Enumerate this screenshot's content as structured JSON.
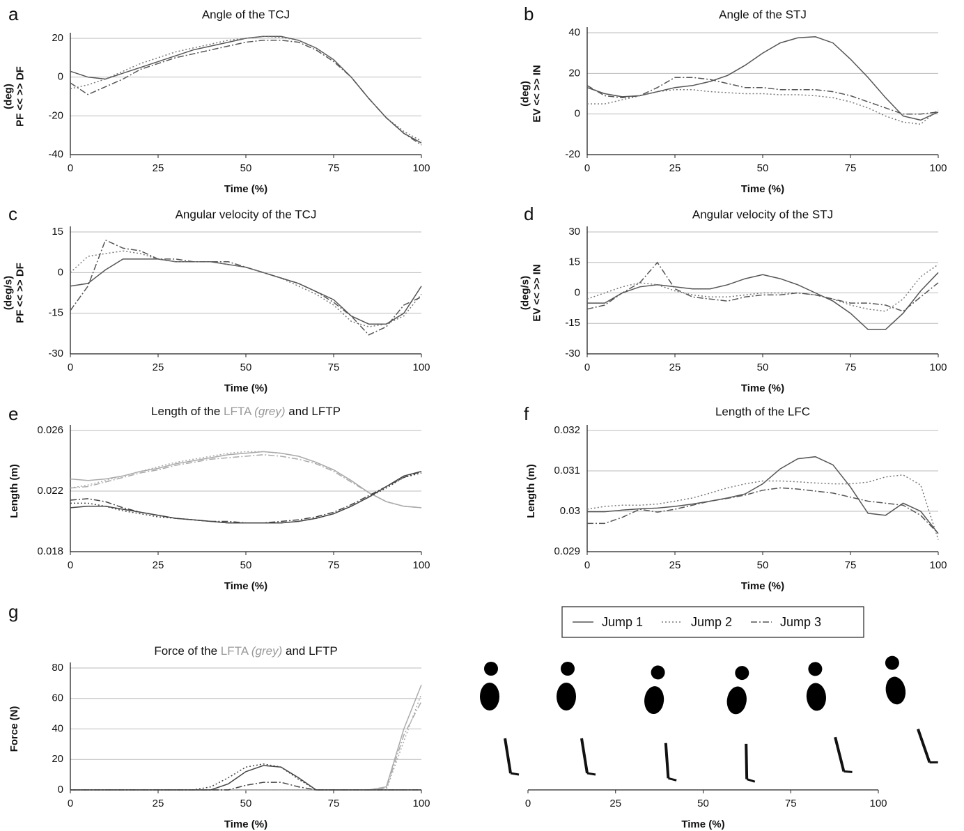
{
  "chart_data": [
    {
      "type": "line",
      "label": "a",
      "title": "Angle of the TCJ",
      "ylabel": [
        "(deg)",
        "PF << >> DF"
      ],
      "xlabel": "Time (%)",
      "x": [
        0,
        5,
        10,
        15,
        20,
        25,
        30,
        35,
        40,
        45,
        50,
        55,
        60,
        65,
        70,
        75,
        80,
        85,
        90,
        95,
        100
      ],
      "xlim": [
        0,
        100
      ],
      "xticks": [
        0,
        25,
        50,
        75,
        100
      ],
      "ylim": [
        -40,
        20
      ],
      "yticks": [
        -40,
        -20,
        0,
        20
      ],
      "grid": true,
      "series": [
        {
          "name": "Jump 1",
          "color": "#555555",
          "dash": "solid",
          "values": [
            3,
            0,
            -1,
            2,
            5,
            8,
            11,
            14,
            16,
            18,
            20,
            21,
            21,
            19,
            15,
            9,
            0,
            -11,
            -21,
            -29,
            -34
          ]
        },
        {
          "name": "Jump 2",
          "color": "#777777",
          "dash": "dotted",
          "values": [
            -6,
            -4,
            -1,
            3,
            7,
            10,
            13,
            15,
            17,
            19,
            20,
            21,
            20.5,
            19,
            15,
            9,
            0,
            -11,
            -21,
            -28,
            -33
          ]
        },
        {
          "name": "Jump 3",
          "color": "#555555",
          "dash": "dashdot",
          "values": [
            -3,
            -9,
            -5,
            -1,
            4,
            7,
            10,
            12,
            14,
            16,
            18,
            19,
            19,
            18,
            14,
            8,
            0,
            -11,
            -21,
            -29,
            -35
          ]
        }
      ]
    },
    {
      "type": "line",
      "label": "b",
      "title": "Angle of the STJ",
      "ylabel": [
        "(deg)",
        "EV << >> IN"
      ],
      "xlabel": "Time (%)",
      "x": [
        0,
        5,
        10,
        15,
        20,
        25,
        30,
        35,
        40,
        45,
        50,
        55,
        60,
        65,
        70,
        75,
        80,
        85,
        90,
        95,
        100
      ],
      "xlim": [
        0,
        100
      ],
      "xticks": [
        0,
        25,
        50,
        75,
        100
      ],
      "ylim": [
        -20,
        40
      ],
      "yticks": [
        -20,
        0,
        20,
        40
      ],
      "grid": true,
      "series": [
        {
          "name": "Jump 1",
          "color": "#555555",
          "dash": "solid",
          "values": [
            13,
            10,
            8.5,
            9,
            11,
            13,
            14,
            16,
            19,
            24,
            30,
            35,
            37.5,
            38,
            35,
            27,
            18,
            8,
            -1,
            -3,
            1
          ]
        },
        {
          "name": "Jump 2",
          "color": "#777777",
          "dash": "dotted",
          "values": [
            5,
            5,
            7,
            9,
            11,
            12,
            12,
            11,
            10.5,
            10,
            10,
            9.5,
            9.5,
            9,
            8,
            6,
            3,
            -1,
            -4,
            -5,
            2
          ]
        },
        {
          "name": "Jump 3",
          "color": "#555555",
          "dash": "dashdot",
          "values": [
            14,
            9,
            8,
            9,
            13,
            18,
            18,
            17,
            15,
            13,
            13,
            12,
            12,
            12,
            11,
            9,
            6,
            3,
            0,
            0,
            1
          ]
        }
      ]
    },
    {
      "type": "line",
      "label": "c",
      "title": "Angular velocity of the TCJ",
      "ylabel": [
        "(deg/s)",
        "PF << >> DF"
      ],
      "xlabel": "Time (%)",
      "x": [
        0,
        5,
        10,
        15,
        20,
        25,
        30,
        35,
        40,
        45,
        50,
        55,
        60,
        65,
        70,
        75,
        80,
        85,
        90,
        95,
        100
      ],
      "xlim": [
        0,
        100
      ],
      "xticks": [
        0,
        25,
        50,
        75,
        100
      ],
      "ylim": [
        -30,
        15
      ],
      "yticks": [
        -30,
        -15,
        0,
        15
      ],
      "grid": true,
      "series": [
        {
          "name": "Jump 1",
          "color": "#555555",
          "dash": "solid",
          "values": [
            -5,
            -4,
            1,
            5,
            5,
            5,
            4,
            4,
            4,
            3,
            2,
            0,
            -2,
            -4,
            -7,
            -10,
            -16,
            -19,
            -19,
            -15,
            -5
          ]
        },
        {
          "name": "Jump 2",
          "color": "#777777",
          "dash": "dotted",
          "values": [
            0,
            6,
            7,
            8,
            7,
            5,
            4,
            4,
            4,
            3,
            2,
            0,
            -2,
            -5,
            -8,
            -12,
            -18,
            -20,
            -19,
            -16,
            -8
          ]
        },
        {
          "name": "Jump 3",
          "color": "#555555",
          "dash": "dashdot",
          "values": [
            -14,
            -5,
            12,
            9,
            8,
            5,
            5,
            4,
            4,
            4,
            2,
            0,
            -2,
            -4,
            -7,
            -11,
            -16,
            -23,
            -20,
            -12,
            -9
          ]
        }
      ]
    },
    {
      "type": "line",
      "label": "d",
      "title": "Angular velocity of the STJ",
      "ylabel": [
        "(deg/s)",
        "EV << >> IN"
      ],
      "xlabel": "Time (%)",
      "x": [
        0,
        5,
        10,
        15,
        20,
        25,
        30,
        35,
        40,
        45,
        50,
        55,
        60,
        65,
        70,
        75,
        80,
        85,
        90,
        95,
        100
      ],
      "xlim": [
        0,
        100
      ],
      "xticks": [
        0,
        25,
        50,
        75,
        100
      ],
      "ylim": [
        -30,
        30
      ],
      "yticks": [
        -30,
        -15,
        0,
        15,
        30
      ],
      "grid": true,
      "series": [
        {
          "name": "Jump 1",
          "color": "#555555",
          "dash": "solid",
          "values": [
            -5,
            -5,
            0,
            3,
            4,
            3,
            2,
            2,
            4,
            7,
            9,
            7,
            4,
            0,
            -4,
            -10,
            -18,
            -18,
            -10,
            1,
            10
          ]
        },
        {
          "name": "Jump 2",
          "color": "#777777",
          "dash": "dotted",
          "values": [
            -3,
            0,
            3,
            5,
            4,
            1,
            -1,
            -2,
            -2,
            -1,
            0,
            0,
            0,
            -1,
            -3,
            -6,
            -8,
            -9,
            -3,
            8,
            14
          ]
        },
        {
          "name": "Jump 3",
          "color": "#555555",
          "dash": "dashdot",
          "values": [
            -8,
            -6,
            0,
            5,
            15,
            2,
            -2,
            -3,
            -4,
            -2,
            -1,
            -1,
            0,
            -1,
            -3,
            -5,
            -5,
            -6,
            -9,
            -2,
            5
          ]
        }
      ]
    },
    {
      "type": "line",
      "label": "e",
      "title": [
        "Length of the",
        "LFTA",
        "(grey)",
        "and  LFTP"
      ],
      "ylabel": [
        "Length (m)"
      ],
      "xlabel": "Time (%)",
      "x": [
        0,
        5,
        10,
        15,
        20,
        25,
        30,
        35,
        40,
        45,
        50,
        55,
        60,
        65,
        70,
        75,
        80,
        85,
        90,
        95,
        100
      ],
      "xlim": [
        0,
        100
      ],
      "xticks": [
        0,
        25,
        50,
        75,
        100
      ],
      "ylim": [
        0.018,
        0.026
      ],
      "yticks": [
        0.018,
        0.022,
        0.026
      ],
      "grid": true,
      "series": [
        {
          "name": "Jump 1",
          "color": "#aaaaaa",
          "dash": "solid",
          "values": [
            0.0228,
            0.0227,
            0.0228,
            0.023,
            0.0233,
            0.0235,
            0.0238,
            0.024,
            0.0242,
            0.0244,
            0.0245,
            0.0246,
            0.0245,
            0.0243,
            0.0239,
            0.0234,
            0.0227,
            0.0219,
            0.0213,
            0.021,
            0.0209
          ]
        },
        {
          "name": "Jump 2",
          "color": "#aaaaaa",
          "dash": "dotted",
          "values": [
            0.0222,
            0.0224,
            0.0227,
            0.023,
            0.0233,
            0.0236,
            0.0239,
            0.0241,
            0.0243,
            0.0245,
            0.0246,
            0.0246,
            0.0245,
            0.0243,
            0.0239,
            0.0234,
            0.0227,
            0.0219,
            0.0213,
            0.021,
            0.0209
          ]
        },
        {
          "name": "Jump 3",
          "color": "#aaaaaa",
          "dash": "dashdot",
          "values": [
            0.0222,
            0.0223,
            0.0226,
            0.0229,
            0.0232,
            0.0234,
            0.0237,
            0.0239,
            0.0241,
            0.0242,
            0.0243,
            0.0244,
            0.0243,
            0.0241,
            0.0238,
            0.0233,
            0.0226,
            0.0219,
            0.0213,
            0.021,
            0.0209
          ]
        },
        {
          "name": "Jump 1",
          "color": "#444444",
          "dash": "solid",
          "values": [
            0.0209,
            0.021,
            0.021,
            0.0208,
            0.0206,
            0.0204,
            0.0202,
            0.0201,
            0.02,
            0.0199,
            0.0199,
            0.0199,
            0.0199,
            0.02,
            0.0202,
            0.0205,
            0.021,
            0.0216,
            0.0223,
            0.023,
            0.0233
          ]
        },
        {
          "name": "Jump 2",
          "color": "#444444",
          "dash": "dotted",
          "values": [
            0.0212,
            0.0212,
            0.021,
            0.0207,
            0.0205,
            0.0203,
            0.0202,
            0.0201,
            0.02,
            0.0199,
            0.0199,
            0.0199,
            0.0199,
            0.02,
            0.0202,
            0.0205,
            0.021,
            0.0216,
            0.0222,
            0.0229,
            0.0232
          ]
        },
        {
          "name": "Jump 3",
          "color": "#444444",
          "dash": "dashdot",
          "values": [
            0.0214,
            0.0215,
            0.0213,
            0.0209,
            0.0206,
            0.0204,
            0.0202,
            0.0201,
            0.02,
            0.02,
            0.0199,
            0.0199,
            0.02,
            0.0201,
            0.0203,
            0.0206,
            0.0211,
            0.0217,
            0.0223,
            0.0229,
            0.0233
          ]
        }
      ]
    },
    {
      "type": "line",
      "label": "f",
      "title": "Length of the LFC",
      "ylabel": [
        "Length (m)"
      ],
      "xlabel": "Time (%)",
      "x": [
        0,
        5,
        10,
        15,
        20,
        25,
        30,
        35,
        40,
        45,
        50,
        55,
        60,
        65,
        70,
        75,
        80,
        85,
        90,
        95,
        100
      ],
      "xlim": [
        0,
        100
      ],
      "xticks": [
        0,
        25,
        50,
        75,
        100
      ],
      "ylim": [
        0.029,
        0.032
      ],
      "yticks": [
        0.029,
        0.03,
        0.031,
        0.032
      ],
      "grid": true,
      "series": [
        {
          "name": "Jump 1",
          "color": "#555555",
          "dash": "solid",
          "values": [
            0.02999,
            0.02999,
            0.03003,
            0.03006,
            0.03008,
            0.03012,
            0.03018,
            0.03025,
            0.03033,
            0.03043,
            0.03068,
            0.03105,
            0.0313,
            0.03135,
            0.03115,
            0.0306,
            0.02995,
            0.0299,
            0.0302,
            0.03,
            0.02945
          ]
        },
        {
          "name": "Jump 2",
          "color": "#777777",
          "dash": "dotted",
          "values": [
            0.03005,
            0.03012,
            0.03015,
            0.03015,
            0.03018,
            0.03025,
            0.03033,
            0.03045,
            0.03058,
            0.03068,
            0.03075,
            0.03075,
            0.03073,
            0.0307,
            0.03068,
            0.03068,
            0.03072,
            0.03085,
            0.0309,
            0.03065,
            0.0293
          ]
        },
        {
          "name": "Jump 3",
          "color": "#555555",
          "dash": "dashdot",
          "values": [
            0.0297,
            0.0297,
            0.02985,
            0.03005,
            0.02998,
            0.03005,
            0.03015,
            0.03025,
            0.03032,
            0.0304,
            0.03052,
            0.03058,
            0.03055,
            0.0305,
            0.03045,
            0.03035,
            0.03025,
            0.0302,
            0.03015,
            0.0299,
            0.02945
          ]
        }
      ]
    },
    {
      "type": "line",
      "label": "g",
      "title": [
        "Force of the",
        "LFTA",
        "(grey)",
        "and LFTP"
      ],
      "ylabel": [
        "Force (N)"
      ],
      "xlabel": "Time (%)",
      "x": [
        0,
        5,
        10,
        15,
        20,
        25,
        30,
        35,
        40,
        45,
        50,
        55,
        60,
        65,
        70,
        75,
        80,
        85,
        90,
        95,
        100
      ],
      "xlim": [
        0,
        100
      ],
      "xticks": [
        0,
        25,
        50,
        75,
        100
      ],
      "ylim": [
        0,
        80
      ],
      "yticks": [
        0,
        20,
        40,
        60,
        80
      ],
      "grid": true,
      "series": [
        {
          "name": "Jump 1",
          "color": "#aaaaaa",
          "dash": "solid",
          "values": [
            0,
            0,
            0,
            0,
            0,
            0,
            0,
            0,
            0,
            0,
            0,
            0,
            0,
            0,
            0,
            0,
            0,
            0,
            2,
            40,
            69
          ]
        },
        {
          "name": "Jump 2",
          "color": "#aaaaaa",
          "dash": "dotted",
          "values": [
            0,
            0,
            0,
            0,
            0,
            0,
            0,
            0,
            0,
            0,
            0,
            0,
            0,
            0,
            0,
            0,
            0,
            0,
            0,
            32,
            63
          ]
        },
        {
          "name": "Jump 3",
          "color": "#aaaaaa",
          "dash": "dashdot",
          "values": [
            0,
            0,
            0,
            0,
            0,
            0,
            0,
            0,
            0,
            0,
            0,
            0,
            0,
            0,
            0,
            0,
            0,
            0,
            1,
            36,
            58
          ]
        },
        {
          "name": "Jump 1",
          "color": "#444444",
          "dash": "solid",
          "values": [
            0,
            0,
            0,
            0,
            0,
            0,
            0,
            0,
            0,
            4,
            12,
            16,
            15,
            8,
            0,
            0,
            0,
            0,
            0,
            0,
            0
          ]
        },
        {
          "name": "Jump 2",
          "color": "#444444",
          "dash": "dotted",
          "values": [
            0,
            0,
            0,
            0,
            0,
            0,
            0,
            0,
            2,
            8,
            15,
            17,
            15,
            7,
            0,
            0,
            0,
            0,
            0,
            0,
            0
          ]
        },
        {
          "name": "Jump 3",
          "color": "#444444",
          "dash": "dashdot",
          "values": [
            0,
            0,
            0,
            0,
            0,
            0,
            0,
            0,
            0,
            0,
            3,
            5,
            5,
            2,
            0,
            0,
            0,
            0,
            0,
            0,
            0
          ]
        }
      ]
    }
  ],
  "skeleton_axis": {
    "xlim": [
      0,
      100
    ],
    "xticks": [
      0,
      25,
      50,
      75,
      100
    ],
    "xlabel": "Time (%)"
  }
}
